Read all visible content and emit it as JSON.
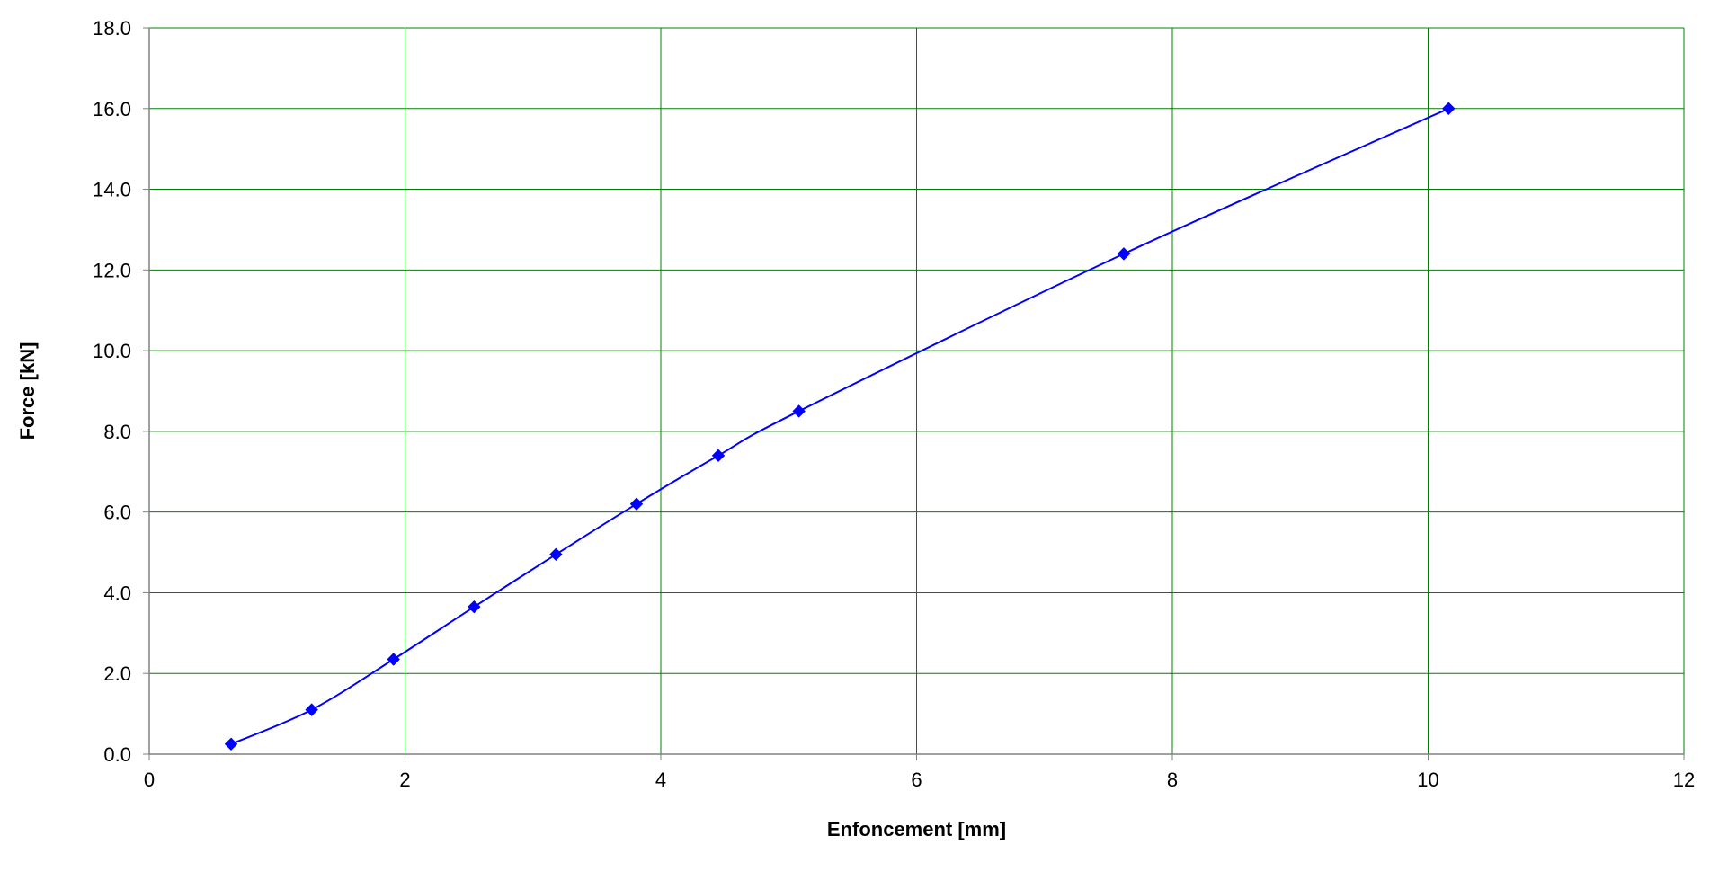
{
  "chart_data": {
    "type": "line",
    "title": "",
    "xlabel": "Enfoncement [mm]",
    "ylabel": "Force [kN]",
    "xlim": [
      0,
      12
    ],
    "ylim": [
      0,
      18
    ],
    "x_ticks": [
      "0",
      "2",
      "4",
      "6",
      "8",
      "10",
      "12"
    ],
    "y_ticks": [
      "0.0",
      "2.0",
      "4.0",
      "6.0",
      "8.0",
      "10.0",
      "12.0",
      "14.0",
      "16.0",
      "18.0"
    ],
    "grid": true,
    "legend": "none",
    "marker": "diamond",
    "smooth": true,
    "series": [
      {
        "color": "#0000ff",
        "x": [
          0.64,
          1.27,
          1.91,
          2.54,
          3.18,
          3.81,
          4.45,
          5.08,
          7.62,
          10.16
        ],
        "y": [
          0.25,
          1.1,
          2.35,
          3.65,
          4.95,
          6.2,
          7.4,
          8.5,
          12.4,
          16.0
        ]
      }
    ],
    "colors": {
      "grid": "#008000",
      "axis": "#808080",
      "line": "#0000ff"
    }
  }
}
